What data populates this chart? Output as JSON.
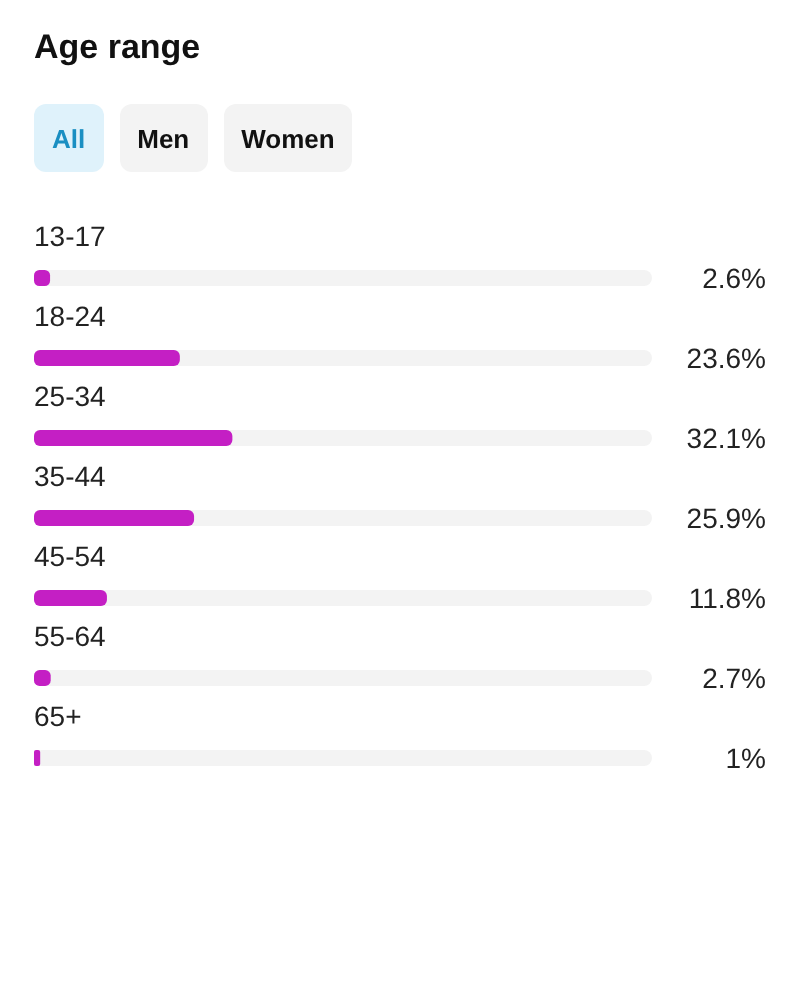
{
  "chart_data": {
    "type": "bar",
    "orientation": "horizontal",
    "title": "Age range",
    "annotations": [
      "All",
      "Men",
      "Women"
    ],
    "categories": [
      "13-17",
      "18-24",
      "25-34",
      "35-44",
      "45-54",
      "55-64",
      "65+"
    ],
    "values": [
      2.6,
      23.6,
      32.1,
      25.9,
      11.8,
      2.7,
      1
    ],
    "value_labels": [
      "2.6%",
      "23.6%",
      "32.1%",
      "25.9%",
      "11.8%",
      "2.7%",
      "1%"
    ],
    "color": "#c41fc4",
    "xlim": [
      0,
      100
    ]
  }
}
